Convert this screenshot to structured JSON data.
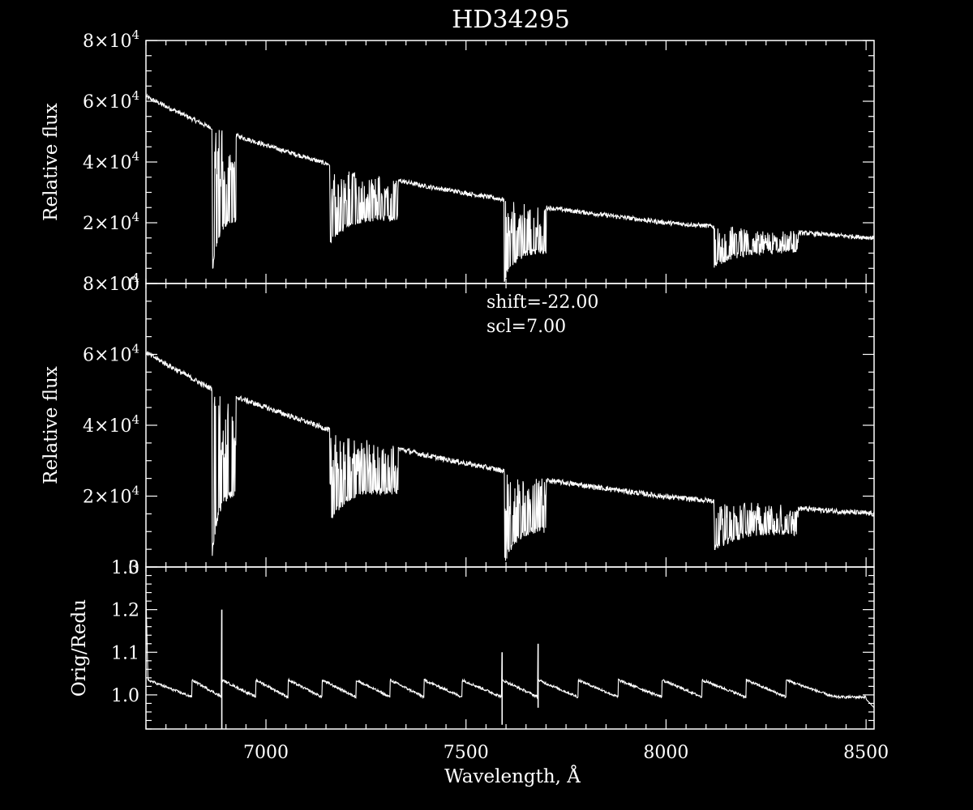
{
  "chart_data": [
    {
      "type": "line",
      "title": "HD34295",
      "ylabel": "Relative flux",
      "xlim": [
        6700,
        8520
      ],
      "ylim": [
        0,
        80000
      ],
      "yticks": [
        {
          "value": 0,
          "mantissa": "0",
          "exp": ""
        },
        {
          "value": 20000,
          "mantissa": "2×10",
          "exp": "4"
        },
        {
          "value": 40000,
          "mantissa": "4×10",
          "exp": "4"
        },
        {
          "value": 60000,
          "mantissa": "6×10",
          "exp": "4"
        },
        {
          "value": 80000,
          "mantissa": "8×10",
          "exp": "4"
        }
      ],
      "continuum": [
        [
          6700,
          61500
        ],
        [
          6850,
          52000
        ],
        [
          7000,
          45500
        ],
        [
          7200,
          37500
        ],
        [
          7400,
          32000
        ],
        [
          7600,
          27500
        ],
        [
          7700,
          25000
        ],
        [
          8000,
          20000
        ],
        [
          8300,
          17000
        ],
        [
          8520,
          15000
        ]
      ],
      "absorption_bands": [
        {
          "from": 6865,
          "to": 6925,
          "min": 2000
        },
        {
          "from": 7160,
          "to": 7330,
          "min": 12000
        },
        {
          "from": 7595,
          "to": 7700,
          "min": 0
        },
        {
          "from": 8120,
          "to": 8330,
          "min": 5000
        }
      ]
    },
    {
      "type": "line",
      "ylabel": "Relative flux",
      "xlim": [
        6700,
        8520
      ],
      "ylim": [
        0,
        80000
      ],
      "yticks": [
        {
          "value": 0,
          "mantissa": "0",
          "exp": ""
        },
        {
          "value": 20000,
          "mantissa": "2×10",
          "exp": "4"
        },
        {
          "value": 40000,
          "mantissa": "4×10",
          "exp": "4"
        },
        {
          "value": 60000,
          "mantissa": "6×10",
          "exp": "4"
        },
        {
          "value": 80000,
          "mantissa": "8×10",
          "exp": "4"
        }
      ],
      "annotations": [
        "shift=-22.00",
        "scl=7.00"
      ],
      "continuum": [
        [
          6700,
          60500
        ],
        [
          6850,
          51000
        ],
        [
          7000,
          45000
        ],
        [
          7200,
          37000
        ],
        [
          7400,
          31500
        ],
        [
          7600,
          27000
        ],
        [
          7700,
          24500
        ],
        [
          8000,
          19800
        ],
        [
          8300,
          16800
        ],
        [
          8520,
          15000
        ]
      ],
      "absorption_bands": [
        {
          "from": 6865,
          "to": 6925,
          "min": 2000
        },
        {
          "from": 7160,
          "to": 7330,
          "min": 12000
        },
        {
          "from": 7595,
          "to": 7700,
          "min": 0
        },
        {
          "from": 8120,
          "to": 8330,
          "min": 4000
        }
      ]
    },
    {
      "type": "line",
      "ylabel": "Orig/Redu",
      "xlabel": "Wavelength, Å",
      "xlim": [
        6700,
        8520
      ],
      "ylim": [
        0.92,
        1.3
      ],
      "yticks": [
        {
          "value": 1.0,
          "label": "1.0"
        },
        {
          "value": 1.1,
          "label": "1.1"
        },
        {
          "value": 1.2,
          "label": "1.2"
        },
        {
          "value": 1.3,
          "label": "1.3"
        }
      ],
      "xticks": [
        {
          "value": 7000,
          "label": "7000"
        },
        {
          "value": 7500,
          "label": "7500"
        },
        {
          "value": 8000,
          "label": "8000"
        },
        {
          "value": 8500,
          "label": "8500"
        }
      ],
      "sawtooth_resets": [
        6705,
        6815,
        6890,
        6975,
        7055,
        7140,
        7225,
        7310,
        7395,
        7490,
        7590,
        7680,
        7780,
        7880,
        7990,
        8090,
        8200,
        8300,
        8420
      ],
      "spikes": [
        {
          "x": 6890,
          "max": 1.2,
          "min": 0.92
        },
        {
          "x": 7590,
          "max": 1.1,
          "min": 0.93
        },
        {
          "x": 7680,
          "max": 1.12,
          "min": 0.97
        }
      ]
    }
  ]
}
